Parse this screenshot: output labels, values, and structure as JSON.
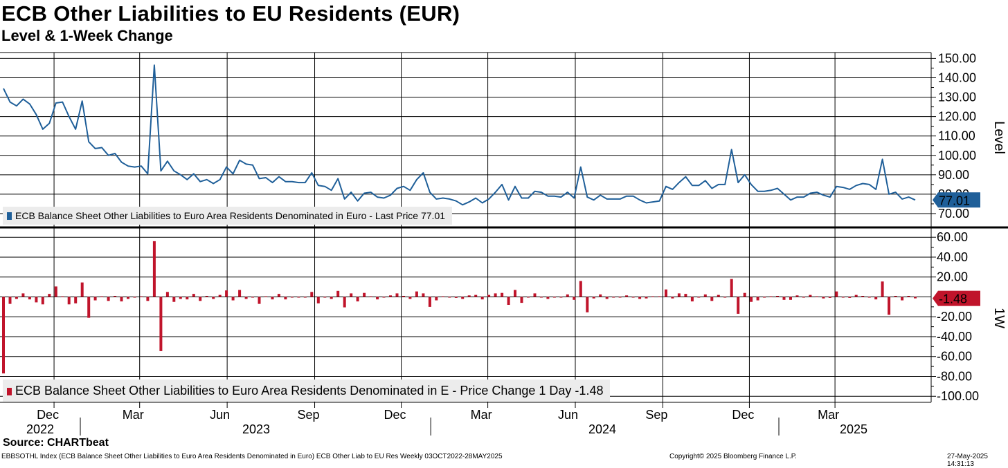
{
  "title": "ECB Other Liabilities to EU Residents (EUR)",
  "subtitle": "Level & 1-Week Change",
  "source": "Source: CHARTbeat",
  "footer": {
    "left": "EBBSOTHL Index (ECB Balance Sheet Other Liabilities to Euro Area Residents Denominated in Euro) ECB Other Liab to EU Res  Weekly 03OCT2022-28MAY2025",
    "middle": "Copyright© 2025 Bloomberg Finance L.P.",
    "right": "27-May-2025 14:31:13"
  },
  "colors": {
    "level": "#1f5f99",
    "change": "#c0142b",
    "grid": "#000000"
  },
  "chart_data": [
    {
      "type": "line",
      "title": "Level & 1-Week Change",
      "ylabel": "Level",
      "ylim": [
        65,
        153
      ],
      "yticks": [
        "70.00",
        "80.00",
        "90.00",
        "100.00",
        "110.00",
        "120.00",
        "130.00",
        "140.00",
        "150.00"
      ],
      "last_value_label": "77.01",
      "legend": "ECB Balance Sheet Other Liabilities to Euro Area Residents Denominated in Euro - Last Price 77.01",
      "x_start": "2022-10-03",
      "x_end": "2025-05-28",
      "x_tick_labels": [
        "Dec",
        "Mar",
        "Jun",
        "Sep",
        "Dec",
        "Mar",
        "Jun",
        "Sep",
        "Dec",
        "Mar"
      ],
      "year_labels": [
        "2022",
        "2023",
        "2024",
        "2025"
      ],
      "series": [
        {
          "name": "ECB Balance Sheet Other Liabilities to Euro Area Residents Denominated in Euro",
          "values": [
            134.5,
            127.5,
            125.5,
            129,
            126.5,
            121,
            113.5,
            116.5,
            127,
            127.5,
            120,
            113.5,
            128,
            107,
            103.5,
            104,
            100,
            101,
            96.5,
            94.5,
            94,
            94.5,
            90.5,
            146.5,
            92,
            97,
            92,
            90,
            87.5,
            90.5,
            86.5,
            87.5,
            85.5,
            87.5,
            94,
            90.5,
            97.5,
            95.5,
            95,
            88,
            88.5,
            86,
            89,
            86.5,
            86.5,
            86,
            86,
            91,
            84.5,
            84,
            82,
            88,
            77.5,
            81,
            76.5,
            80.5,
            81,
            78.5,
            78,
            79.5,
            83,
            84,
            82,
            87.5,
            91,
            81,
            77.5,
            78,
            77.5,
            76.5,
            74.5,
            76,
            78,
            75.5,
            77.5,
            81,
            85,
            77,
            84,
            78,
            78,
            81.5,
            81,
            79,
            79,
            78.5,
            81,
            78,
            94,
            78.5,
            77,
            79.5,
            77.5,
            77.5,
            77.5,
            79,
            79,
            77,
            75.5,
            76,
            76.5,
            84,
            82.5,
            86,
            89,
            84.5,
            84.5,
            87,
            83,
            85,
            85,
            103,
            86,
            90,
            85,
            81.5,
            81.5,
            82,
            83,
            80,
            77,
            78.5,
            78.5,
            80.5,
            81,
            79.5,
            78.5,
            84,
            83.5,
            82.5,
            84.5,
            85.5,
            85,
            82.5,
            98,
            80,
            81,
            77.5,
            78.5,
            77.01
          ]
        }
      ]
    },
    {
      "type": "bar",
      "ylabel": "1W",
      "ylim": [
        -104,
        65
      ],
      "yticks": [
        "-100.00",
        "-80.00",
        "-60.00",
        "-40.00",
        "-20.00",
        "20.00",
        "40.00",
        "60.00"
      ],
      "last_value_label": "-1.48",
      "legend": "ECB Balance Sheet Other Liabilities to Euro Area Residents Denominated in E - Price Change 1 Day -1.48",
      "series": [
        {
          "name": "ECB Balance Sheet Other Liabilities to Euro Area Residents Denominated in E - Price Change 1 Day",
          "values": [
            -77,
            -7,
            -2,
            3.5,
            -2.5,
            -5.5,
            -7.5,
            3,
            10.5,
            0.5,
            -7.5,
            -6.5,
            14.5,
            -21,
            -3.5,
            0.5,
            -4,
            1,
            -4.5,
            -2,
            -0.5,
            0.5,
            -4,
            56,
            -54.5,
            5,
            -5,
            -2,
            -2.5,
            3,
            -4,
            1,
            -2,
            2,
            6.5,
            -3.5,
            7,
            -2,
            -0.5,
            -7,
            0.5,
            -2.5,
            3,
            -2.5,
            0,
            -0.5,
            0,
            5,
            -6.5,
            -0.5,
            -2,
            6,
            -10.5,
            3.5,
            -4.5,
            4,
            0.5,
            -2.5,
            -0.5,
            1.5,
            3.5,
            1,
            -2,
            5.5,
            3.5,
            -10,
            -3.5,
            0.5,
            -0.5,
            -1,
            -2,
            1.5,
            2,
            -2.5,
            2,
            3.5,
            4,
            -8,
            7,
            -6,
            0,
            3.5,
            -0.5,
            -2,
            0,
            -0.5,
            2.5,
            -3,
            16,
            -15.5,
            -1.5,
            2.5,
            -2,
            0,
            0,
            1.5,
            0,
            -2,
            -1.5,
            0.5,
            0.5,
            7.5,
            -1.5,
            3.5,
            3,
            -4.5,
            0,
            2.5,
            -4,
            2,
            0,
            18,
            -17,
            4,
            -5,
            -3.5,
            0,
            0.5,
            1,
            -3,
            -3,
            1.5,
            0,
            2,
            0.5,
            -1.5,
            -1,
            5.5,
            -0.5,
            -1,
            2,
            1,
            -0.5,
            -2.5,
            15.5,
            -18,
            1,
            -3.5,
            1,
            -1.48
          ]
        }
      ]
    }
  ]
}
